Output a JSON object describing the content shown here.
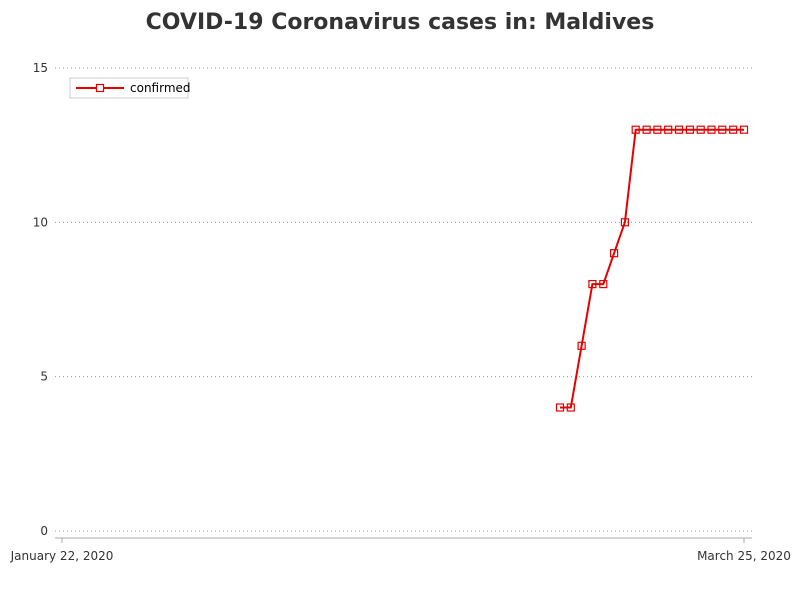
{
  "chart_data": {
    "type": "line",
    "title": "COVID-19 Coronavirus cases in: Maldives",
    "xlabel": "",
    "ylabel": "",
    "x_start_label": "January 22, 2020",
    "x_end_label": "March 25, 2020",
    "x_range": [
      "2020-01-22",
      "2020-03-25"
    ],
    "ylim": [
      0,
      15
    ],
    "yticks": [
      "0",
      "5",
      "10",
      "15"
    ],
    "grid": "horizontal dotted",
    "legend_position": "top-left",
    "series": [
      {
        "name": "confirmed",
        "color": "#e60000",
        "marker": "square",
        "x": [
          "2020-03-08",
          "2020-03-09",
          "2020-03-10",
          "2020-03-11",
          "2020-03-12",
          "2020-03-13",
          "2020-03-14",
          "2020-03-15",
          "2020-03-16",
          "2020-03-17",
          "2020-03-18",
          "2020-03-19",
          "2020-03-20",
          "2020-03-21",
          "2020-03-22",
          "2020-03-23",
          "2020-03-24",
          "2020-03-25"
        ],
        "values": [
          4,
          4,
          6,
          8,
          8,
          9,
          10,
          13,
          13,
          13,
          13,
          13,
          13,
          13,
          13,
          13,
          13,
          13
        ]
      }
    ]
  }
}
